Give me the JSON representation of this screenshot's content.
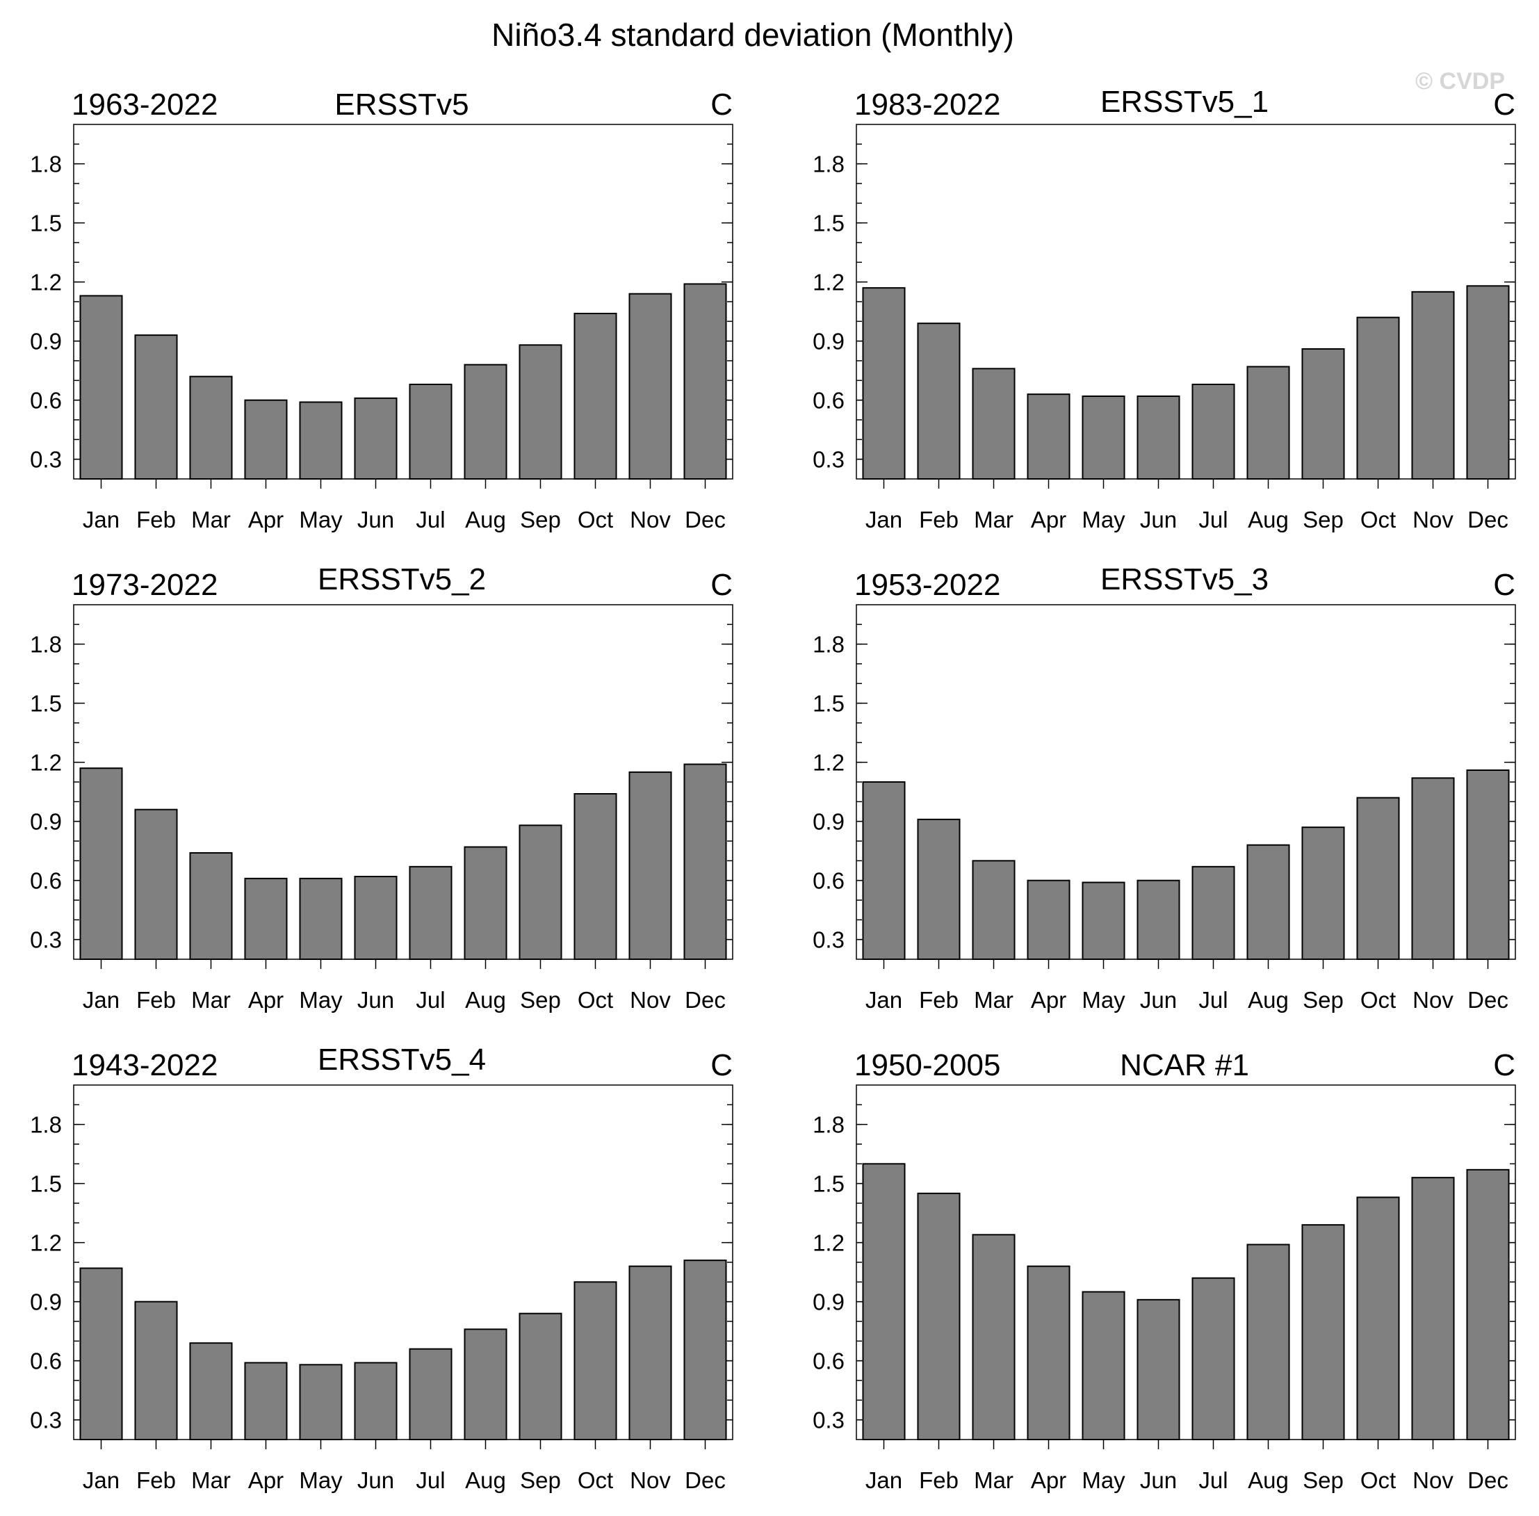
{
  "figure": {
    "title": "Niño3.4 standard deviation (Monthly)",
    "watermark": "© CVDP"
  },
  "chart_data": [
    {
      "type": "bar",
      "period": "1963-2022",
      "title": "ERSSTv5",
      "units": "C",
      "categories": [
        "Jan",
        "Feb",
        "Mar",
        "Apr",
        "May",
        "Jun",
        "Jul",
        "Aug",
        "Sep",
        "Oct",
        "Nov",
        "Dec"
      ],
      "values": [
        1.13,
        0.93,
        0.72,
        0.6,
        0.59,
        0.61,
        0.68,
        0.78,
        0.88,
        1.04,
        1.14,
        1.19
      ],
      "ylim": [
        0.2,
        2.0
      ],
      "yticks": [
        "0.3",
        "0.6",
        "0.9",
        "1.2",
        "1.5",
        "1.8"
      ]
    },
    {
      "type": "bar",
      "period": "1983-2022",
      "title": "ERSSTv5_1",
      "units": "C",
      "categories": [
        "Jan",
        "Feb",
        "Mar",
        "Apr",
        "May",
        "Jun",
        "Jul",
        "Aug",
        "Sep",
        "Oct",
        "Nov",
        "Dec"
      ],
      "values": [
        1.17,
        0.99,
        0.76,
        0.63,
        0.62,
        0.62,
        0.68,
        0.77,
        0.86,
        1.02,
        1.15,
        1.18
      ],
      "ylim": [
        0.2,
        2.0
      ],
      "yticks": [
        "0.3",
        "0.6",
        "0.9",
        "1.2",
        "1.5",
        "1.8"
      ]
    },
    {
      "type": "bar",
      "period": "1973-2022",
      "title": "ERSSTv5_2",
      "units": "C",
      "categories": [
        "Jan",
        "Feb",
        "Mar",
        "Apr",
        "May",
        "Jun",
        "Jul",
        "Aug",
        "Sep",
        "Oct",
        "Nov",
        "Dec"
      ],
      "values": [
        1.17,
        0.96,
        0.74,
        0.61,
        0.61,
        0.62,
        0.67,
        0.77,
        0.88,
        1.04,
        1.15,
        1.19
      ],
      "ylim": [
        0.2,
        2.0
      ],
      "yticks": [
        "0.3",
        "0.6",
        "0.9",
        "1.2",
        "1.5",
        "1.8"
      ]
    },
    {
      "type": "bar",
      "period": "1953-2022",
      "title": "ERSSTv5_3",
      "units": "C",
      "categories": [
        "Jan",
        "Feb",
        "Mar",
        "Apr",
        "May",
        "Jun",
        "Jul",
        "Aug",
        "Sep",
        "Oct",
        "Nov",
        "Dec"
      ],
      "values": [
        1.1,
        0.91,
        0.7,
        0.6,
        0.59,
        0.6,
        0.67,
        0.78,
        0.87,
        1.02,
        1.12,
        1.16
      ],
      "ylim": [
        0.2,
        2.0
      ],
      "yticks": [
        "0.3",
        "0.6",
        "0.9",
        "1.2",
        "1.5",
        "1.8"
      ]
    },
    {
      "type": "bar",
      "period": "1943-2022",
      "title": "ERSSTv5_4",
      "units": "C",
      "categories": [
        "Jan",
        "Feb",
        "Mar",
        "Apr",
        "May",
        "Jun",
        "Jul",
        "Aug",
        "Sep",
        "Oct",
        "Nov",
        "Dec"
      ],
      "values": [
        1.07,
        0.9,
        0.69,
        0.59,
        0.58,
        0.59,
        0.66,
        0.76,
        0.84,
        1.0,
        1.08,
        1.11
      ],
      "ylim": [
        0.2,
        2.0
      ],
      "yticks": [
        "0.3",
        "0.6",
        "0.9",
        "1.2",
        "1.5",
        "1.8"
      ]
    },
    {
      "type": "bar",
      "period": "1950-2005",
      "title": "NCAR #1",
      "units": "C",
      "categories": [
        "Jan",
        "Feb",
        "Mar",
        "Apr",
        "May",
        "Jun",
        "Jul",
        "Aug",
        "Sep",
        "Oct",
        "Nov",
        "Dec"
      ],
      "values": [
        1.6,
        1.45,
        1.24,
        1.08,
        0.95,
        0.91,
        1.02,
        1.19,
        1.29,
        1.43,
        1.53,
        1.57
      ],
      "ylim": [
        0.2,
        2.0
      ],
      "yticks": [
        "0.3",
        "0.6",
        "0.9",
        "1.2",
        "1.5",
        "1.8"
      ]
    }
  ]
}
